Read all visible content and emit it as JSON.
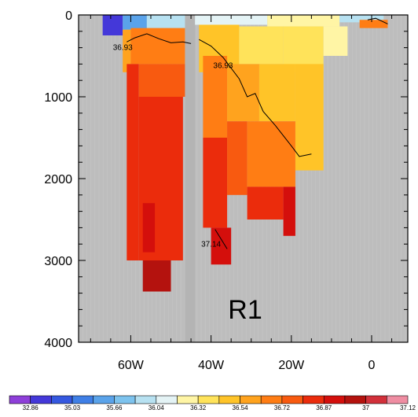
{
  "chart_data": {
    "type": "heatmap",
    "region_label": "R1",
    "x_ticks": [
      {
        "value": 60,
        "label": "60W"
      },
      {
        "value": 40,
        "label": "40W"
      },
      {
        "value": 20,
        "label": "20W"
      },
      {
        "value": 0,
        "label": "0"
      }
    ],
    "y_ticks": [
      {
        "value": 0,
        "label": "0"
      },
      {
        "value": 1000,
        "label": "1000"
      },
      {
        "value": 2000,
        "label": "2000"
      },
      {
        "value": 3000,
        "label": "3000"
      },
      {
        "value": 4000,
        "label": "4000"
      }
    ],
    "x_range_west": [
      73,
      -9
    ],
    "y_range_depth": [
      0,
      4000
    ],
    "missing_color": "#bdbdbd",
    "colorbar": {
      "colors": [
        "#8e3fd9",
        "#4438d9",
        "#3558e0",
        "#3f7fe6",
        "#5aa3ea",
        "#7dc3ee",
        "#b7e1f1",
        "#e4f3f5",
        "#fff5a5",
        "#ffe35a",
        "#ffc428",
        "#ffa31e",
        "#ff7d14",
        "#f85a10",
        "#eb2c0c",
        "#d40f0c",
        "#b4120e",
        "#d2303a",
        "#ef8da2"
      ],
      "labels": [
        "32.86",
        "35.03",
        "35.66",
        "36.04",
        "36.32",
        "36.54",
        "36.72",
        "36.87",
        "37",
        "37.12"
      ],
      "label_boundaries": [
        1,
        3,
        5,
        7,
        9,
        11,
        13,
        15,
        17,
        19
      ]
    },
    "contour_labels": [
      {
        "text": "36.93",
        "lon": 62,
        "depth": 430
      },
      {
        "text": "36.93",
        "lon": 37,
        "depth": 650
      },
      {
        "text": "37.14",
        "lon": 40,
        "depth": 2830
      }
    ],
    "contours": [
      [
        [
          61,
          330
        ],
        [
          59,
          280
        ],
        [
          56,
          230
        ],
        [
          53,
          290
        ],
        [
          50,
          340
        ],
        [
          47,
          330
        ],
        [
          45,
          350
        ]
      ],
      [
        [
          43,
          300
        ],
        [
          40,
          380
        ],
        [
          37,
          520
        ],
        [
          33,
          780
        ],
        [
          31,
          1000
        ],
        [
          29,
          960
        ],
        [
          27,
          1180
        ],
        [
          24,
          1350
        ],
        [
          20,
          1600
        ],
        [
          18,
          1730
        ],
        [
          15,
          1700
        ]
      ],
      [
        [
          39,
          2620
        ],
        [
          38,
          2700
        ],
        [
          36,
          2860
        ]
      ],
      [
        [
          1,
          60
        ],
        [
          -1,
          40
        ],
        [
          -4,
          110
        ]
      ]
    ],
    "gaps": [
      {
        "lon_from": 46.5,
        "lon_to": 44.0,
        "depth_from": 0,
        "depth_to": 4000
      }
    ],
    "blocks": [
      {
        "lon_from": 67,
        "lon_to": 62,
        "depth_from": 0,
        "depth_to": 250,
        "color": 1
      },
      {
        "lon_from": 62,
        "lon_to": 56,
        "depth_from": 0,
        "depth_to": 180,
        "color": 4
      },
      {
        "lon_from": 56,
        "lon_to": 46.5,
        "depth_from": 0,
        "depth_to": 160,
        "color": 6
      },
      {
        "lon_from": 44,
        "lon_to": 26,
        "depth_from": 0,
        "depth_to": 120,
        "color": 7
      },
      {
        "lon_from": 26,
        "lon_to": 8,
        "depth_from": 0,
        "depth_to": 140,
        "color": 8
      },
      {
        "lon_from": 8,
        "lon_to": -3,
        "depth_from": 0,
        "depth_to": 90,
        "color": 6
      },
      {
        "lon_from": 62,
        "lon_to": 60,
        "depth_from": 180,
        "depth_to": 700,
        "color": 11
      },
      {
        "lon_from": 60,
        "lon_to": 46.5,
        "depth_from": 160,
        "depth_to": 600,
        "color": 12
      },
      {
        "lon_from": 61,
        "lon_to": 58,
        "depth_from": 600,
        "depth_to": 1000,
        "color": 14
      },
      {
        "lon_from": 58,
        "lon_to": 46.5,
        "depth_from": 600,
        "depth_to": 1000,
        "color": 13
      },
      {
        "lon_from": 61,
        "lon_to": 58,
        "depth_from": 1000,
        "depth_to": 3000,
        "color": 14
      },
      {
        "lon_from": 58,
        "lon_to": 47,
        "depth_from": 1000,
        "depth_to": 3000,
        "color": 14
      },
      {
        "lon_from": 57,
        "lon_to": 50,
        "depth_from": 3000,
        "depth_to": 3380,
        "color": 16
      },
      {
        "lon_from": 57,
        "lon_to": 54,
        "depth_from": 2300,
        "depth_to": 2900,
        "color": 15
      },
      {
        "lon_from": 43,
        "lon_to": 33,
        "depth_from": 120,
        "depth_to": 700,
        "color": 10
      },
      {
        "lon_from": 33,
        "lon_to": 22,
        "depth_from": 140,
        "depth_to": 600,
        "color": 9
      },
      {
        "lon_from": 22,
        "lon_to": 12,
        "depth_from": 140,
        "depth_to": 700,
        "color": 9
      },
      {
        "lon_from": 12,
        "lon_to": 6,
        "depth_from": 140,
        "depth_to": 500,
        "color": 8
      },
      {
        "lon_from": 42,
        "lon_to": 36,
        "depth_from": 500,
        "depth_to": 1500,
        "color": 12
      },
      {
        "lon_from": 36,
        "lon_to": 28,
        "depth_from": 600,
        "depth_to": 1300,
        "color": 11
      },
      {
        "lon_from": 28,
        "lon_to": 19,
        "depth_from": 600,
        "depth_to": 1300,
        "color": 10
      },
      {
        "lon_from": 19,
        "lon_to": 12,
        "depth_from": 600,
        "depth_to": 1900,
        "color": 10
      },
      {
        "lon_from": 42,
        "lon_to": 36,
        "depth_from": 1500,
        "depth_to": 2600,
        "color": 14
      },
      {
        "lon_from": 36,
        "lon_to": 31,
        "depth_from": 1300,
        "depth_to": 2200,
        "color": 13
      },
      {
        "lon_from": 31,
        "lon_to": 19,
        "depth_from": 1300,
        "depth_to": 2100,
        "color": 12
      },
      {
        "lon_from": 31,
        "lon_to": 22,
        "depth_from": 2100,
        "depth_to": 2500,
        "color": 14
      },
      {
        "lon_from": 22,
        "lon_to": 19,
        "depth_from": 2100,
        "depth_to": 2700,
        "color": 15
      },
      {
        "lon_from": 40,
        "lon_to": 35,
        "depth_from": 2600,
        "depth_to": 3050,
        "color": 15
      },
      {
        "lon_from": 3,
        "lon_to": -4,
        "depth_from": 60,
        "depth_to": 160,
        "color": 12
      }
    ]
  }
}
